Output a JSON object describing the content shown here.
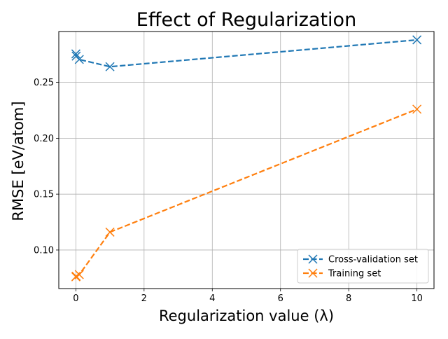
{
  "chart_data": {
    "type": "line",
    "title": "Effect of Regularization",
    "xlabel": "Regularization value (λ)",
    "ylabel": "RMSE [eV/atom]",
    "xlim": [
      -0.5,
      10.5
    ],
    "ylim": [
      0.0655,
      0.2955
    ],
    "xticks": [
      0,
      2,
      4,
      6,
      8,
      10
    ],
    "xtick_labels": [
      "0",
      "2",
      "4",
      "6",
      "8",
      "10"
    ],
    "yticks": [
      0.1,
      0.15,
      0.2,
      0.25
    ],
    "ytick_labels": [
      "0.10",
      "0.15",
      "0.20",
      "0.25"
    ],
    "grid": true,
    "legend_position": "lower-right",
    "marker": "x",
    "line_style": "dashed",
    "series": [
      {
        "name": "Cross-validation set",
        "color": "#1f77b4",
        "x": [
          0.001,
          0.01,
          0.1,
          1,
          10
        ],
        "y": [
          0.2755,
          0.2735,
          0.2705,
          0.264,
          0.288
        ]
      },
      {
        "name": "Training set",
        "color": "#ff7f0e",
        "x": [
          0.001,
          0.01,
          0.1,
          1,
          10
        ],
        "y": [
          0.076,
          0.0765,
          0.078,
          0.116,
          0.226
        ]
      }
    ]
  }
}
